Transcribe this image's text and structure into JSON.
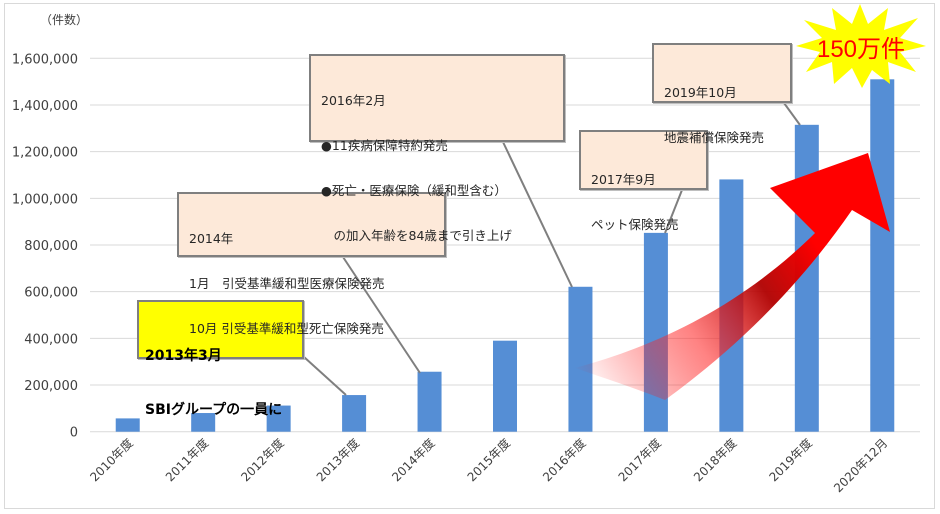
{
  "chart_data": {
    "type": "bar",
    "title": "",
    "ylabel": "（件数）",
    "xlabel": "",
    "ylim": [
      0,
      1600000
    ],
    "y_ticks": [
      "0",
      "200,000",
      "400,000",
      "600,000",
      "800,000",
      "1,000,000",
      "1,200,000",
      "1,400,000",
      "1,600,000"
    ],
    "categories": [
      "2010年度",
      "2011年度",
      "2012年度",
      "2013年度",
      "2014年度",
      "2015年度",
      "2016年度",
      "2017年度",
      "2018年度",
      "2019年度",
      "2020年12月"
    ],
    "values": [
      57000,
      80000,
      112000,
      157000,
      257000,
      390000,
      621000,
      852000,
      1081000,
      1315000,
      1510000
    ],
    "bar_color": "#558ed5",
    "grid": true,
    "legend": "none",
    "annotations": [
      {
        "id": "sbi",
        "lines": [
          "2013年3月",
          "SBIグループの一員に"
        ],
        "target": "2013年度",
        "style": "yellow"
      },
      {
        "id": "y2014",
        "lines": [
          "2014年",
          "1月　引受基準緩和型医療保険発売",
          "10月 引受基準緩和型死亡保険発売"
        ],
        "target": "2014年度"
      },
      {
        "id": "y2016",
        "lines": [
          "2016年2月",
          "●11疾病保障特約発売",
          "●死亡・医療保険（緩和型含む）",
          "　の加入年齢を84歳まで引き上げ"
        ],
        "target": "2016年度"
      },
      {
        "id": "y2017",
        "lines": [
          "2017年9月",
          "ペット保険発売"
        ],
        "target": "2017年度"
      },
      {
        "id": "y2019",
        "lines": [
          "2019年10月",
          "地震補償保険発売"
        ],
        "target": "2019年度"
      }
    ],
    "highlight": {
      "text": "150万件",
      "shape": "starburst",
      "fill": "#ffff00",
      "text_color": "#ff0000"
    },
    "trend_arrow": {
      "color": "#ff0000",
      "direction": "up-right"
    }
  },
  "colors": {
    "bar": "#558ed5",
    "grid": "#d9d9d9",
    "callout_bg": "#fde9d9",
    "callout_border": "#7f7f7f",
    "sbi_bg": "#ffff00",
    "burst": "#ffff00",
    "burst_text": "#ff0000",
    "arrow": "#ff0000"
  }
}
